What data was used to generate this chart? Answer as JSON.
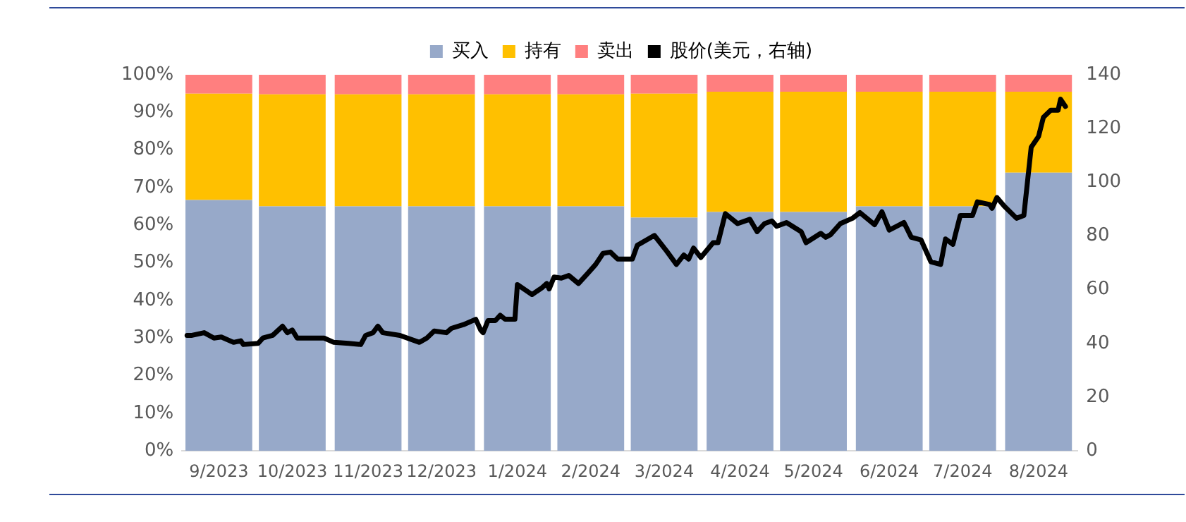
{
  "chart_data": {
    "type": "bar",
    "stacked": true,
    "legend": "top",
    "grid": false,
    "x": [
      "2023-09-16",
      "2023-10-16",
      "2023-11-16",
      "2023-12-16",
      "2024-01-16",
      "2024-02-15",
      "2024-03-16",
      "2024-04-16",
      "2024-05-16",
      "2024-06-16",
      "2024-07-16",
      "2024-08-16"
    ],
    "xlim": [
      "2023-09-01",
      "2024-09-01"
    ],
    "xticks": [
      {
        "value": "2023-09-16",
        "label": "9/2023"
      },
      {
        "value": "2023-10-16",
        "label": "10/2023"
      },
      {
        "value": "2023-11-16",
        "label": "11/2023"
      },
      {
        "value": "2023-12-16",
        "label": "12/2023"
      },
      {
        "value": "2024-01-16",
        "label": "1/2024"
      },
      {
        "value": "2024-02-15",
        "label": "2/2024"
      },
      {
        "value": "2024-03-16",
        "label": "3/2024"
      },
      {
        "value": "2024-04-16",
        "label": "4/2024"
      },
      {
        "value": "2024-05-16",
        "label": "5/2024"
      },
      {
        "value": "2024-06-16",
        "label": "6/2024"
      },
      {
        "value": "2024-07-16",
        "label": "7/2024"
      },
      {
        "value": "2024-08-16",
        "label": "8/2024"
      }
    ],
    "ylim": [
      0,
      100
    ],
    "yticks": [
      {
        "value": 0,
        "label": "0%"
      },
      {
        "value": 10,
        "label": "10%"
      },
      {
        "value": 20,
        "label": "20%"
      },
      {
        "value": 30,
        "label": "30%"
      },
      {
        "value": 40,
        "label": "40%"
      },
      {
        "value": 50,
        "label": "50%"
      },
      {
        "value": 60,
        "label": "60%"
      },
      {
        "value": 70,
        "label": "70%"
      },
      {
        "value": 80,
        "label": "80%"
      },
      {
        "value": 90,
        "label": "90%"
      },
      {
        "value": 100,
        "label": "100%"
      }
    ],
    "y2lim": [
      0,
      140
    ],
    "y2ticks": [
      0,
      20,
      40,
      60,
      80,
      100,
      120,
      140
    ],
    "series": [
      {
        "name": "买入",
        "color": "#97a9c9",
        "values": [
          66.7,
          65,
          65,
          65,
          65,
          65,
          62,
          63.5,
          63.5,
          65,
          65,
          74
        ]
      },
      {
        "name": "持有",
        "color": "#ffc000",
        "values": [
          28.3,
          29.8,
          29.8,
          29.8,
          29.8,
          29.8,
          33,
          32,
          32,
          30.5,
          30.5,
          21.5
        ]
      },
      {
        "name": "卖出",
        "color": "#ff7f7f",
        "values": [
          5,
          5.2,
          5.2,
          5.2,
          5.2,
          5.2,
          5,
          4.5,
          4.5,
          4.5,
          4.5,
          4.5
        ]
      },
      {
        "name": "股价(美元，右轴)",
        "type": "line",
        "axis": "y2",
        "color": "#000000",
        "marker": "none",
        "line_style": "solid",
        "x": [
          "2023-09-03",
          "2023-09-05",
          "2023-09-10",
          "2023-09-14",
          "2023-09-17",
          "2023-09-22",
          "2023-09-25",
          "2023-09-26",
          "2023-10-02",
          "2023-10-04",
          "2023-10-08",
          "2023-10-12",
          "2023-10-14",
          "2023-10-16",
          "2023-10-18",
          "2023-10-25",
          "2023-10-29",
          "2023-11-02",
          "2023-11-08",
          "2023-11-13",
          "2023-11-15",
          "2023-11-18",
          "2023-11-20",
          "2023-11-22",
          "2023-11-29",
          "2023-12-07",
          "2023-12-10",
          "2023-12-13",
          "2023-12-18",
          "2023-12-20",
          "2023-12-25",
          "2023-12-30",
          "2024-01-01",
          "2024-01-02",
          "2024-01-04",
          "2024-01-07",
          "2024-01-09",
          "2024-01-11",
          "2024-01-15",
          "2024-01-16",
          "2024-01-22",
          "2024-01-26",
          "2024-01-28",
          "2024-01-29",
          "2024-01-31",
          "2024-02-03",
          "2024-02-06",
          "2024-02-10",
          "2024-02-14",
          "2024-02-17",
          "2024-02-20",
          "2024-02-23",
          "2024-02-26",
          "2024-03-03",
          "2024-03-05",
          "2024-03-12",
          "2024-03-17",
          "2024-03-21",
          "2024-03-24",
          "2024-03-26",
          "2024-03-28",
          "2024-03-31",
          "2024-04-05",
          "2024-04-07",
          "2024-04-10",
          "2024-04-15",
          "2024-04-20",
          "2024-04-23",
          "2024-04-26",
          "2024-04-29",
          "2024-05-01",
          "2024-05-05",
          "2024-05-11",
          "2024-05-13",
          "2024-05-19",
          "2024-05-21",
          "2024-05-23",
          "2024-05-27",
          "2024-06-01",
          "2024-06-04",
          "2024-06-10",
          "2024-06-13",
          "2024-06-16",
          "2024-06-22",
          "2024-06-25",
          "2024-06-29",
          "2024-07-03",
          "2024-07-07",
          "2024-07-09",
          "2024-07-12",
          "2024-07-15",
          "2024-07-20",
          "2024-07-22",
          "2024-07-27",
          "2024-07-28",
          "2024-07-30",
          "2024-08-02",
          "2024-08-07",
          "2024-08-10",
          "2024-08-13",
          "2024-08-16",
          "2024-08-18",
          "2024-08-21",
          "2024-08-24",
          "2024-08-25",
          "2024-08-27"
        ],
        "values": [
          43,
          43,
          44,
          42,
          42.4,
          40.4,
          41,
          39.6,
          40,
          42,
          43,
          46.4,
          44,
          45,
          42,
          42,
          42,
          40.4,
          40,
          39.6,
          43,
          44,
          46.4,
          44,
          43,
          40.4,
          42,
          44.6,
          44,
          45.6,
          47,
          49,
          45,
          44,
          48.5,
          48.5,
          50.5,
          49,
          49,
          61.9,
          58.2,
          60.7,
          62.3,
          60.3,
          64.7,
          64.3,
          65.3,
          62.3,
          66.3,
          69.4,
          73.5,
          74,
          71.4,
          71.4,
          76.5,
          80.2,
          74.4,
          69.4,
          72.9,
          71.4,
          75.5,
          72,
          77.5,
          77.5,
          88.3,
          84.6,
          86.2,
          81.6,
          84.6,
          85.6,
          83.6,
          85,
          81.6,
          77.5,
          81,
          79.5,
          80.5,
          84.6,
          86.6,
          88.7,
          84.2,
          89,
          82.2,
          85,
          79.5,
          78.5,
          70.4,
          69.4,
          78.9,
          76.9,
          87.6,
          87.6,
          92.7,
          91.7,
          90.3,
          94.3,
          91.1,
          86.6,
          87.6,
          113,
          117,
          124.2,
          126.8,
          126.8,
          130.9,
          128.2
        ]
      }
    ]
  }
}
